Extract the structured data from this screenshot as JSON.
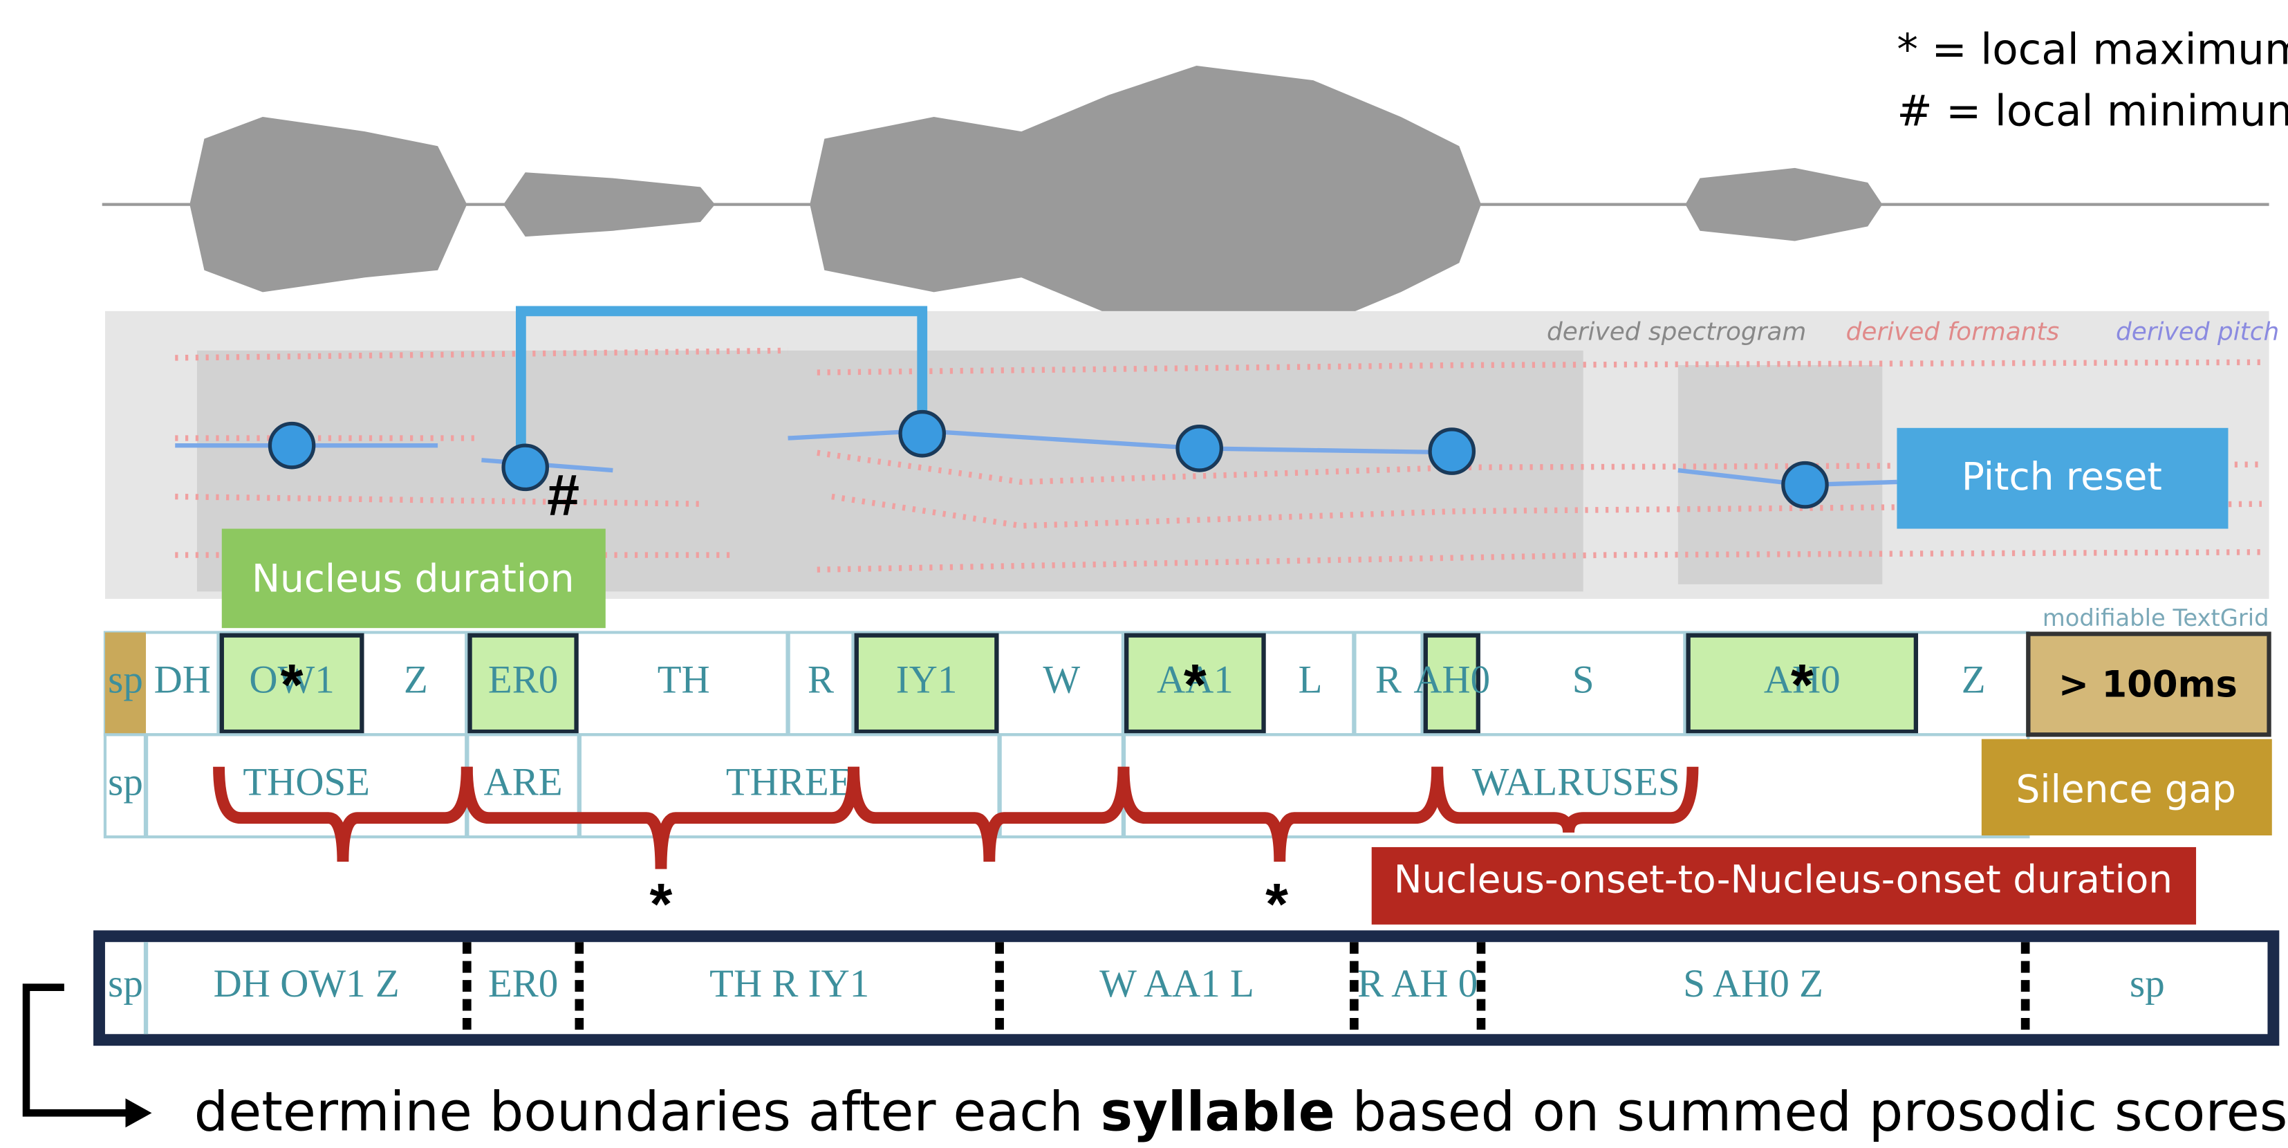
{
  "legend": {
    "max": "* = local maximum",
    "min": "# = local minimum"
  },
  "spectrogram_legend": [
    "derived spectrogram",
    "derived formants",
    "derived pitch"
  ],
  "labels": {
    "pitch_reset": "Pitch reset",
    "nucleus_duration": "Nucleus duration",
    "textgrid": "modifiable TextGrid",
    "silence_threshold": "> 100ms",
    "silence_gap": "Silence gap",
    "nucleus_onset": "Nucleus-onset-to-Nucleus-onset duration"
  },
  "markers": {
    "local_max": "*",
    "local_min": "#"
  },
  "phone_tier": {
    "label": "sp",
    "phones": [
      "DH",
      "OW1",
      "Z",
      "ER0",
      "TH",
      "R",
      "IY1",
      "W",
      "AA1",
      "L",
      "R",
      "AH0",
      "S",
      "AH0",
      "Z"
    ]
  },
  "word_tier": {
    "label": "sp",
    "words": [
      "THOSE",
      "ARE",
      "THREE",
      "WALRUSES"
    ]
  },
  "syllable_tier": {
    "label": "sp",
    "syllables": [
      "DH OW1 Z",
      "ER0",
      "TH R IY1",
      "W AA1 L",
      "R AH 0",
      "S AH0 Z",
      "sp"
    ]
  },
  "caption": {
    "before": "determine boundaries after each",
    "bold": "syllable",
    "after": "based on summed prosodic scores"
  }
}
